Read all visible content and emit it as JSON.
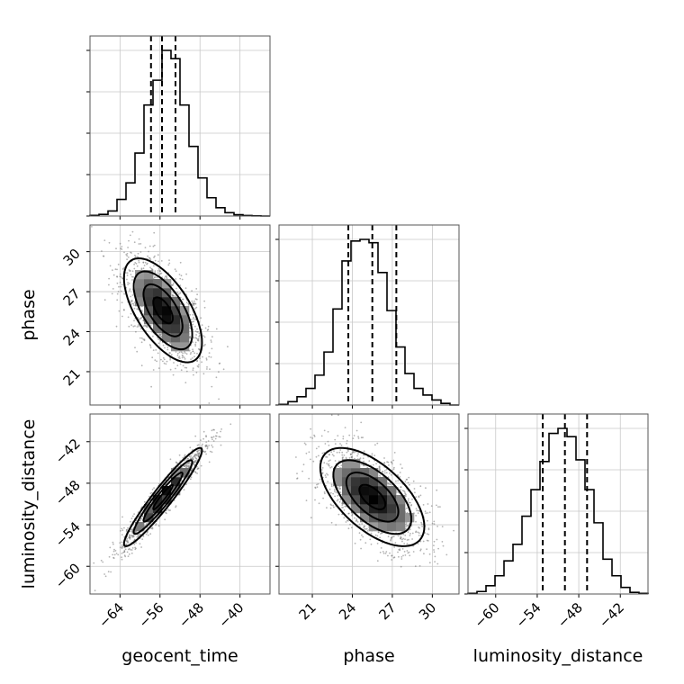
{
  "chart_data": {
    "type": "corner",
    "parameters": [
      {
        "name": "geocent_time",
        "label": "geocent_time",
        "range": [
          -70,
          -34
        ],
        "ticks": [
          -64,
          -56,
          -48,
          -40
        ],
        "quantiles": [
          -57.8,
          -55.6,
          -52.9
        ],
        "hist": [
          0.004,
          0.01,
          0.03,
          0.1,
          0.2,
          0.38,
          0.67,
          0.82,
          1.0,
          0.95,
          0.67,
          0.42,
          0.23,
          0.11,
          0.05,
          0.02,
          0.008,
          0.003,
          0.001,
          0.0
        ]
      },
      {
        "name": "phase",
        "label": "phase",
        "range": [
          18.5,
          32
        ],
        "ticks": [
          21,
          24,
          27,
          30
        ],
        "quantiles": [
          23.7,
          25.5,
          27.3
        ],
        "hist": [
          0.004,
          0.02,
          0.05,
          0.1,
          0.18,
          0.32,
          0.58,
          0.87,
          0.99,
          1.0,
          0.98,
          0.8,
          0.57,
          0.35,
          0.19,
          0.1,
          0.06,
          0.03,
          0.01,
          0.0
        ]
      },
      {
        "name": "luminosity_distance",
        "label": "luminosity_distance",
        "range": [
          -64,
          -38
        ],
        "ticks": [
          -60,
          -54,
          -48,
          -42
        ],
        "quantiles": [
          -53.2,
          -50.0,
          -46.8
        ],
        "hist": [
          0.004,
          0.015,
          0.05,
          0.11,
          0.2,
          0.3,
          0.47,
          0.63,
          0.8,
          0.97,
          1.0,
          0.95,
          0.81,
          0.63,
          0.43,
          0.21,
          0.11,
          0.04,
          0.01,
          0.004
        ]
      }
    ],
    "pairs": [
      {
        "x": "geocent_time",
        "y": "phase",
        "center": [
          -55.4,
          25.6
        ],
        "sd": [
          3.9,
          1.95
        ],
        "rho": -0.62
      },
      {
        "x": "geocent_time",
        "y": "luminosity_distance",
        "center": [
          -55.4,
          -50.0
        ],
        "sd": [
          3.9,
          3.55
        ],
        "rho": 0.95
      },
      {
        "x": "phase",
        "y": "luminosity_distance",
        "center": [
          25.5,
          -50.0
        ],
        "sd": [
          1.95,
          3.55
        ],
        "rho": -0.6
      }
    ],
    "contour_levels": [
      0.5,
      1.0,
      1.5,
      2.0
    ],
    "grid": true,
    "xlabel": "",
    "ylabel": ""
  }
}
